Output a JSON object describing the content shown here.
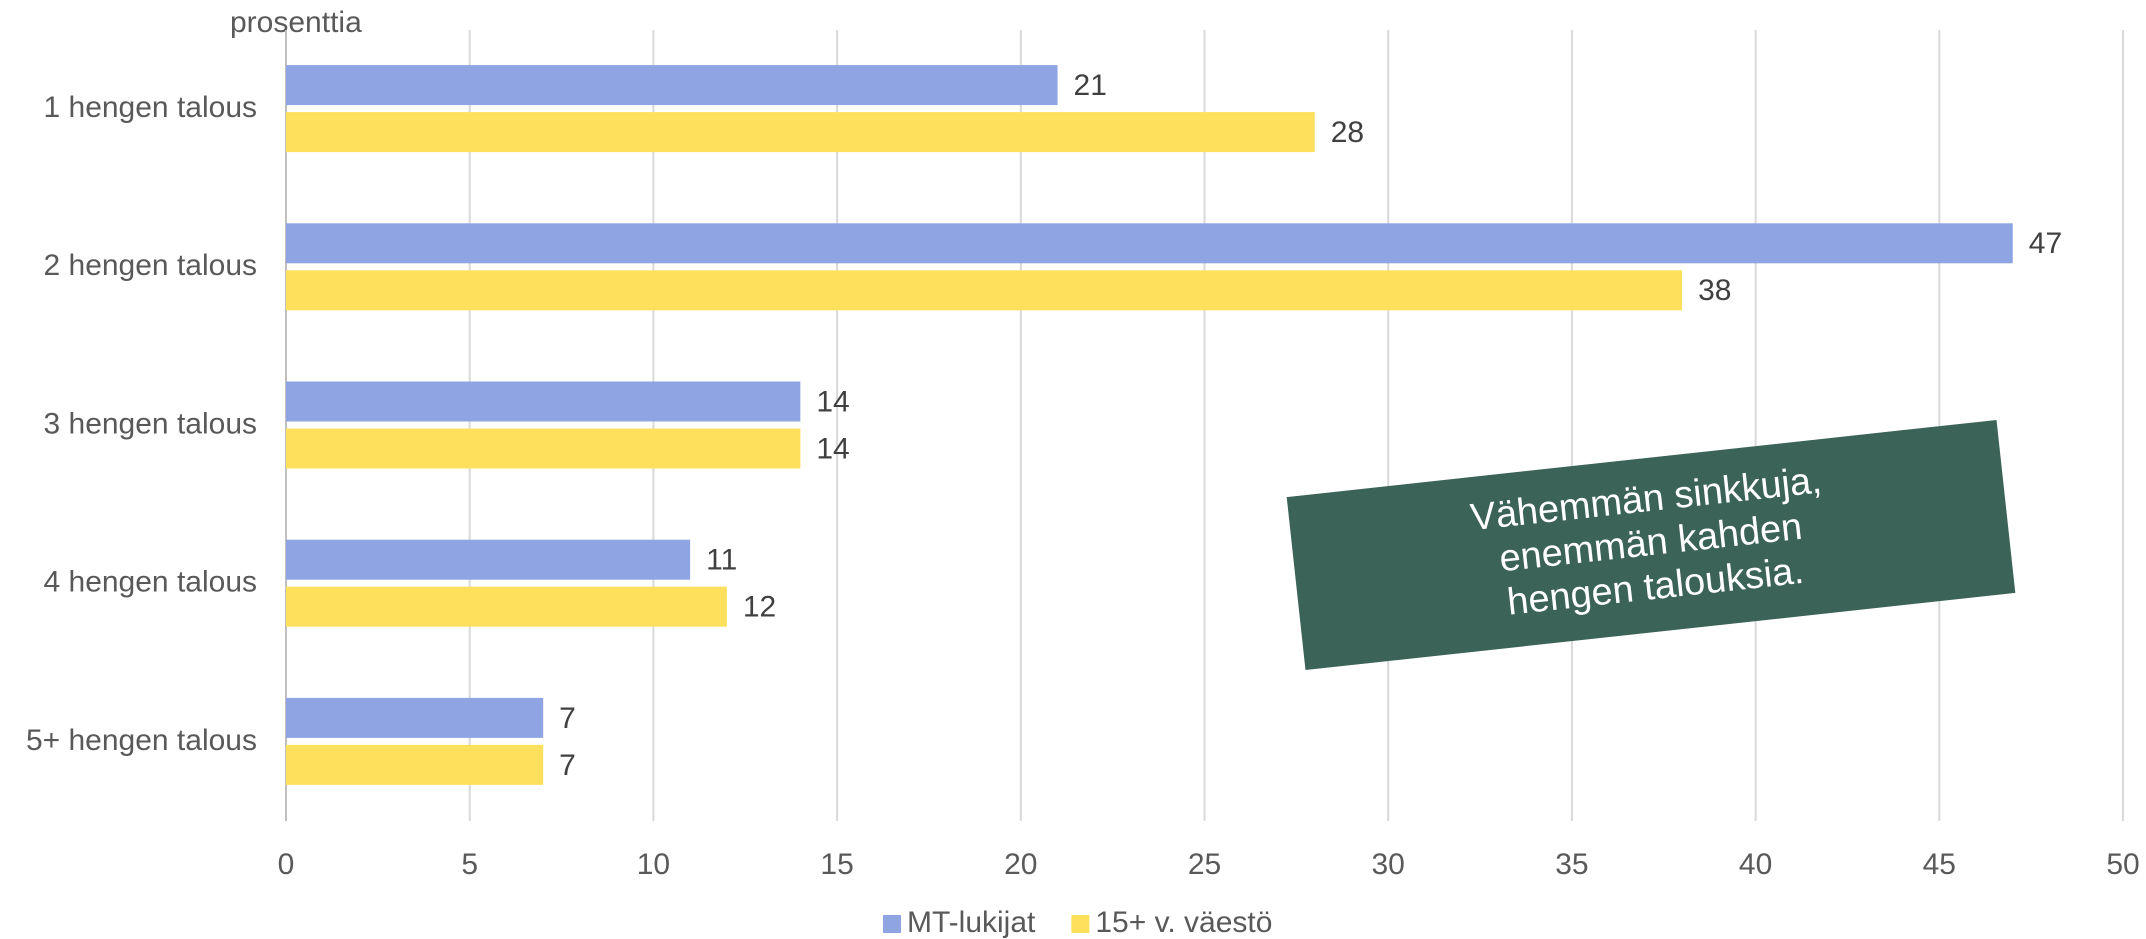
{
  "chart_data": {
    "type": "bar",
    "orientation": "horizontal",
    "axis_label": "prosenttia",
    "categories": [
      "1 hengen talous",
      "2 hengen talous",
      "3 hengen talous",
      "4 hengen talous",
      "5+ hengen talous"
    ],
    "series": [
      {
        "name": "MT-lukijat",
        "color": "#8fa5e3",
        "values": [
          21,
          47,
          14,
          11,
          7
        ]
      },
      {
        "name": "15+ v. väestö",
        "color": "#ffe05c",
        "values": [
          28,
          38,
          14,
          12,
          7
        ]
      }
    ],
    "xlim": [
      0,
      50
    ],
    "xticks": [
      0,
      5,
      10,
      15,
      20,
      25,
      30,
      35,
      40,
      45,
      50
    ],
    "grid": true,
    "legend": "bottom",
    "annotation": {
      "lines": [
        "Vähemmän sinkkuja,",
        "enemmän kahden",
        "hengen talouksia."
      ],
      "color": "#3b6358"
    }
  }
}
